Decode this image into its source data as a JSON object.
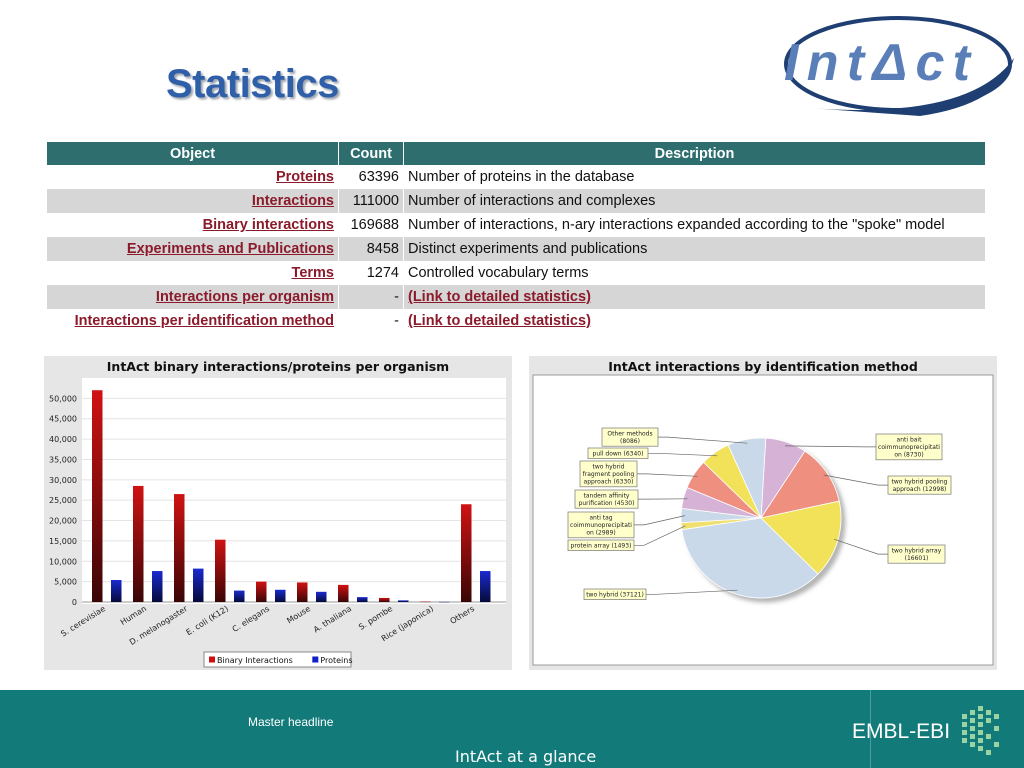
{
  "slide": {
    "title": "Statistics",
    "logo_text": "IntΔct"
  },
  "table": {
    "headers": [
      "Object",
      "Count",
      "Description"
    ],
    "rows": [
      {
        "object": "Proteins",
        "count": "63396",
        "description": "Number of proteins in the database",
        "desc_is_link": false
      },
      {
        "object": "Interactions",
        "count": "111000",
        "description": "Number of interactions and complexes",
        "desc_is_link": false
      },
      {
        "object": "Binary interactions",
        "count": "169688",
        "description": "Number of interactions, n-ary interactions expanded according to the \"spoke\" model",
        "desc_is_link": false
      },
      {
        "object": "Experiments and Publications",
        "count": "8458",
        "description": "Distinct experiments and publications",
        "desc_is_link": false
      },
      {
        "object": "Terms",
        "count": "1274",
        "description": "Controlled vocabulary terms",
        "desc_is_link": false
      },
      {
        "object": "Interactions per organism",
        "count": "-",
        "description": "(Link to detailed statistics)",
        "desc_is_link": true
      },
      {
        "object": "Interactions per identification method",
        "count": "-",
        "description": "(Link to detailed statistics)",
        "desc_is_link": true
      }
    ]
  },
  "chart_data": [
    {
      "type": "bar",
      "title": "IntAct binary interactions/proteins per organism",
      "categories": [
        "S. cerevisiae",
        "Human",
        "D. melanogaster",
        "E. coli (K12)",
        "C. elegans",
        "Mouse",
        "A. thaliana",
        "S. pombe",
        "Rice (japonica)",
        "Others"
      ],
      "series": [
        {
          "name": "Binary Interactions",
          "color": "#cc1010",
          "values": [
            52000,
            28500,
            26500,
            15300,
            5000,
            4800,
            4200,
            1000,
            100,
            24000
          ]
        },
        {
          "name": "Proteins",
          "color": "#1020cc",
          "values": [
            5400,
            7600,
            8200,
            2800,
            3000,
            2500,
            1200,
            400,
            50,
            7600
          ]
        }
      ],
      "ylim": [
        0,
        55000
      ],
      "yticks": [
        "0",
        "5,000",
        "10,000",
        "15,000",
        "20,000",
        "25,000",
        "30,000",
        "35,000",
        "40,000",
        "45,000",
        "50,000"
      ],
      "ytick_values": [
        0,
        5000,
        10000,
        15000,
        20000,
        25000,
        30000,
        35000,
        40000,
        45000,
        50000
      ],
      "grid": true,
      "legend_position": "bottom"
    },
    {
      "type": "pie",
      "title": "IntAct interactions by identification method",
      "slices": [
        {
          "label": "anti bait coimmunoprecipitation (8730)",
          "value": 8730,
          "color": "#d6b3d6"
        },
        {
          "label": "two hybrid pooling approach (12998)",
          "value": 12998,
          "color": "#ee8f80"
        },
        {
          "label": "two hybrid array (16601)",
          "value": 16601,
          "color": "#f2e25a"
        },
        {
          "label": "two hybrid (37121)",
          "value": 37121,
          "color": "#cad9ea"
        },
        {
          "label": "protein array (1493)",
          "value": 1493,
          "color": "#f0e070"
        },
        {
          "label": "anti tag coimmunoprecipitation (2989)",
          "value": 2989,
          "color": "#cad9ea"
        },
        {
          "label": "tandem affinity purification (4530)",
          "value": 4530,
          "color": "#d6b3d6"
        },
        {
          "label": "two hybrid fragment pooling approach (6330)",
          "value": 6330,
          "color": "#ee8f80"
        },
        {
          "label": "pull down (6340)",
          "value": 6340,
          "color": "#f2e25a"
        },
        {
          "label": "Other methods (8086)",
          "value": 8086,
          "color": "#cad9ea"
        }
      ],
      "label_lines": [
        [
          "anti bait",
          "coimmunoprecipitati",
          "on (8730)"
        ],
        [
          "two hybrid pooling",
          "approach (12998)"
        ],
        [
          "two hybrid array",
          "(16601)"
        ],
        [
          "two hybrid (37121)"
        ],
        [
          "protein array (1493)"
        ],
        [
          "anti tag",
          "coimmunoprecipitati",
          "on (2989)"
        ],
        [
          "tandem affinity",
          "purification (4530)"
        ],
        [
          "two hybrid",
          "fragment pooling",
          "approach (6330)"
        ],
        [
          "pull down (6340)"
        ],
        [
          "Other methods",
          "(8086)"
        ]
      ]
    }
  ],
  "footer": {
    "master": "Master headline",
    "glance": "IntAct at a glance",
    "embl": "EMBL-EBI"
  }
}
